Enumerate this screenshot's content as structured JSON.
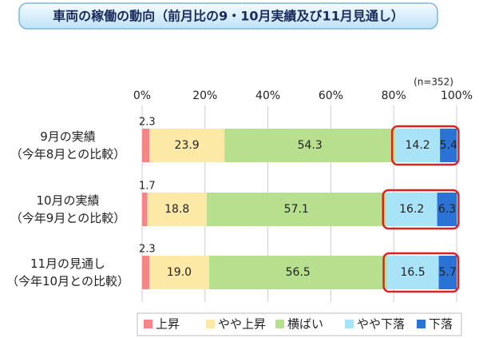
{
  "chart_data": {
    "type": "stacked-bar-horizontal",
    "title": "車両の稼働の動向（前月比の9・10月実績及び11月見通し）",
    "annotation": "(n=352)",
    "categories": [
      "9月の実績\n（今年8月との比較）",
      "10月の実績\n（今年9月との比較）",
      "11月の見通し\n（今年10月との比較）"
    ],
    "series": [
      {
        "name": "上昇",
        "color": "#f4868a",
        "values": [
          2.3,
          1.7,
          2.3
        ]
      },
      {
        "name": "やや上昇",
        "color": "#fde9a6",
        "values": [
          23.9,
          18.8,
          19.0
        ],
        "value_labels": [
          "23.9",
          "18.8",
          "19.0"
        ]
      },
      {
        "name": "横ばい",
        "color": "#b6e08e",
        "values": [
          54.3,
          57.1,
          56.5
        ]
      },
      {
        "name": "やや下落",
        "color": "#a9e3f7",
        "values": [
          14.2,
          16.2,
          16.5
        ]
      },
      {
        "name": "下落",
        "color": "#2a72d4",
        "values": [
          5.4,
          6.3,
          5.7
        ]
      }
    ],
    "xlim": [
      0,
      100
    ],
    "xticks": [
      {
        "value": 0,
        "label": "0%"
      },
      {
        "value": 20,
        "label": "20%"
      },
      {
        "value": 40,
        "label": "40%"
      },
      {
        "value": 60,
        "label": "60%"
      },
      {
        "value": 80,
        "label": "80%"
      },
      {
        "value": 100,
        "label": "100%"
      }
    ],
    "grid": true
  }
}
